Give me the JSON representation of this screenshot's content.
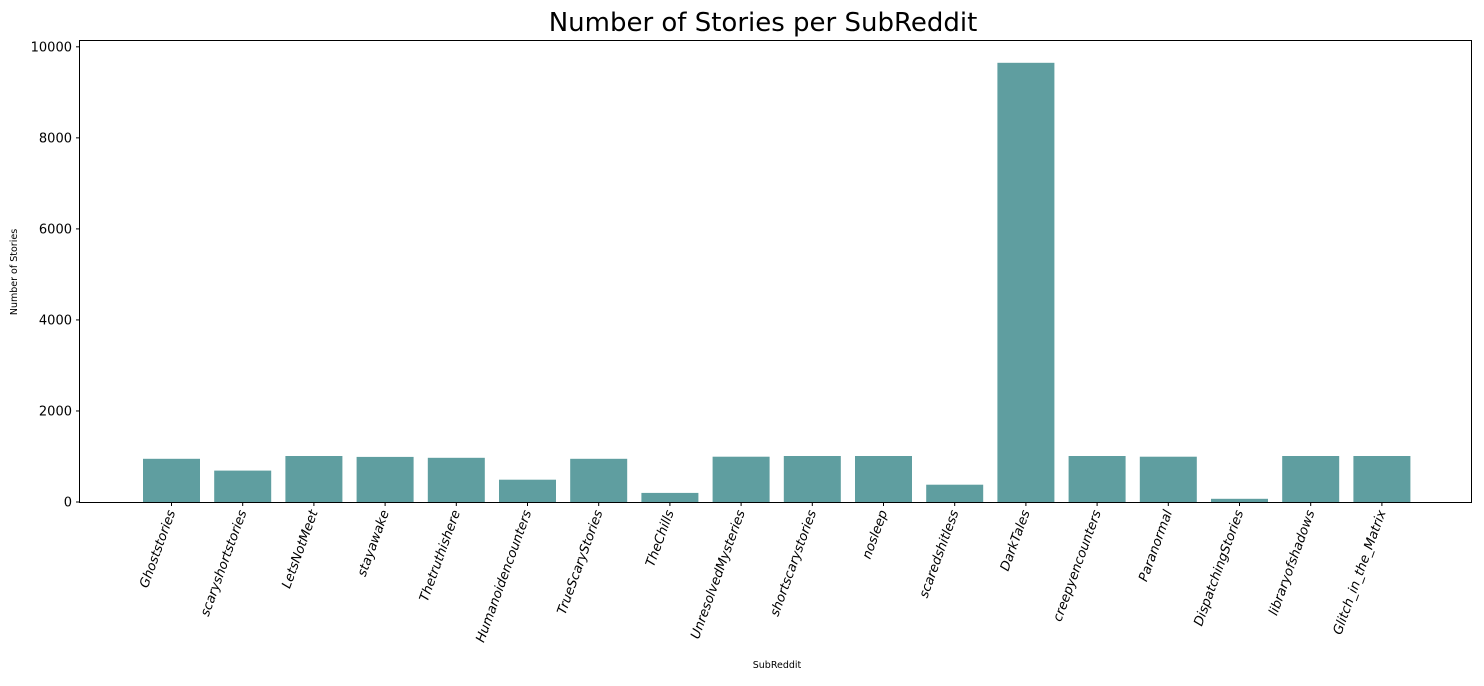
{
  "chart_data": {
    "type": "bar",
    "title": "Number of Stories per SubReddit",
    "xlabel": "SubReddit",
    "ylabel": "Number of Stories",
    "categories": [
      "Ghoststories",
      "scaryshortstories",
      "LetsNotMeet",
      "stayawake",
      "Thetruthishere",
      "Humanoidencounters",
      "TrueScaryStories",
      "TheChills",
      "UnresolvedMysteries",
      "shortscarystories",
      "nosleep",
      "scaredshitless",
      "DarkTales",
      "creepyencounters",
      "Paranormal",
      "DispatchingStories",
      "libraryofshadows",
      "Glitch_in_the_Matrix"
    ],
    "values": [
      950,
      690,
      1010,
      990,
      970,
      490,
      950,
      200,
      995,
      1010,
      1010,
      380,
      9650,
      1010,
      995,
      70,
      1010,
      1010
    ],
    "yticks": [
      0,
      2000,
      4000,
      6000,
      8000,
      10000
    ],
    "ylim": [
      0,
      10150
    ],
    "grid": false,
    "legend": "none",
    "bar_color": "#5f9ea0"
  }
}
